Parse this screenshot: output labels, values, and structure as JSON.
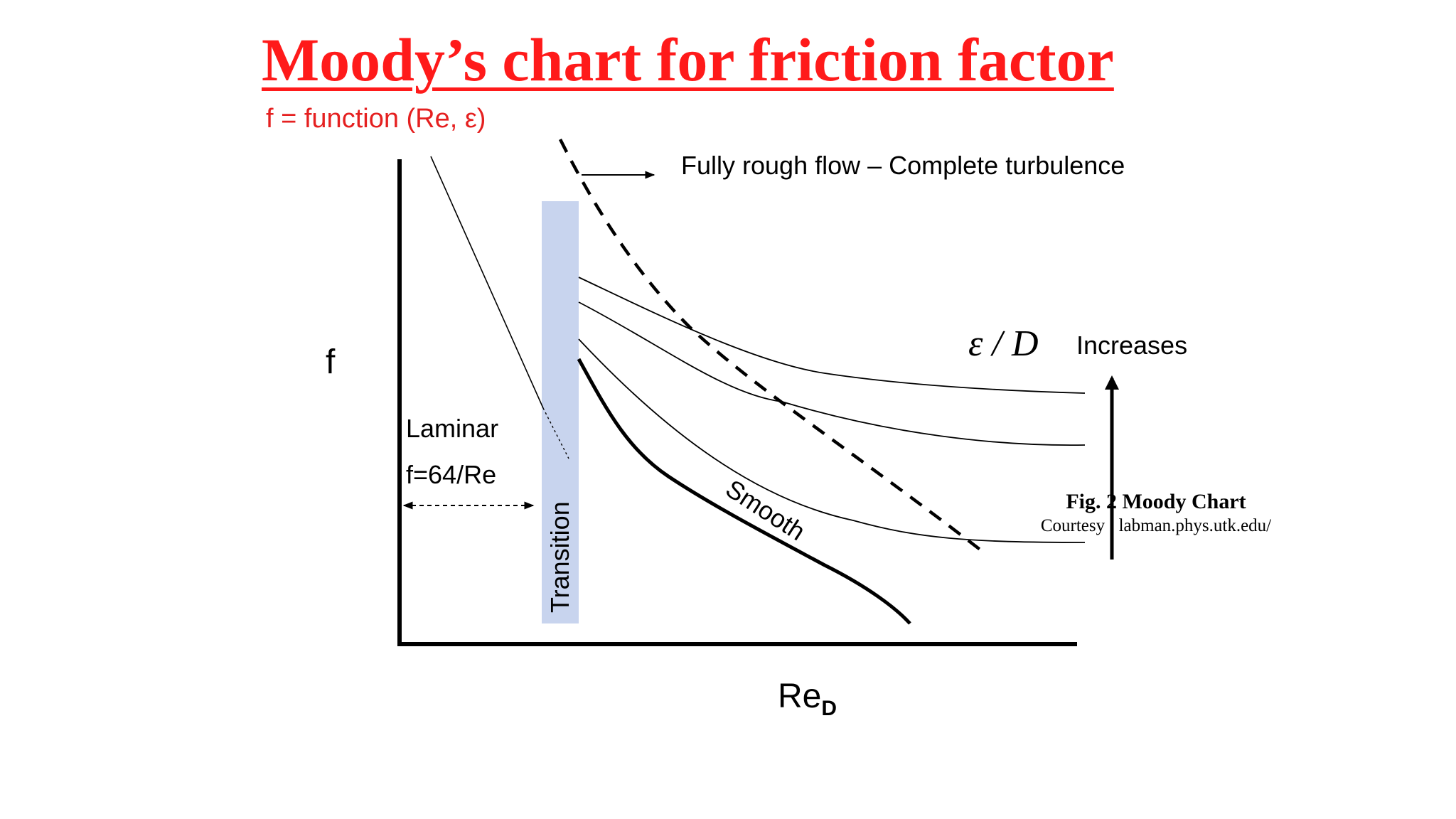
{
  "colors": {
    "title": "#ff1a1a",
    "subtitle": "#e52020",
    "transition_band": "#c8d4ee",
    "ink": "#000000"
  },
  "title": "Moody’s chart for friction factor",
  "subtitle": "f = function (Re, ε)",
  "labels": {
    "y_axis": "f",
    "x_axis_main": "Re",
    "x_axis_sub": "D",
    "fully_rough": "Fully rough flow – Complete turbulence",
    "roughness_symbol": "ε / D",
    "increases": "Increases",
    "laminar": "Laminar",
    "laminar_formula": "f=64/Re",
    "transition": "Transition",
    "smooth": "Smooth"
  },
  "caption": {
    "figure": "Fig. 2 Moody Chart",
    "courtesy": "Courtesy : labman.phys.utk.edu/"
  }
}
